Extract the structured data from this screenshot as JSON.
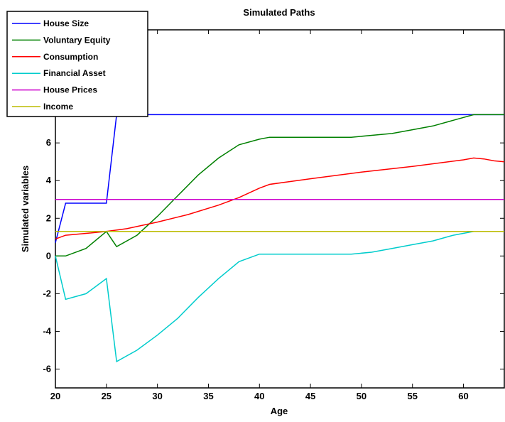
{
  "chart_data": {
    "type": "line",
    "title": "Simulated Paths",
    "xlabel": "Age",
    "ylabel": "Simulated variables",
    "xlim": [
      20,
      64
    ],
    "ylim": [
      -7,
      12
    ],
    "xticks": [
      20,
      25,
      30,
      35,
      40,
      45,
      50,
      55,
      60
    ],
    "yticks": [
      -6,
      -4,
      -2,
      0,
      2,
      4,
      6
    ],
    "grid": false,
    "legend_position": "top-left",
    "series": [
      {
        "name": "House Size",
        "color": "#0000ff",
        "x": [
          20,
          21,
          25,
          26,
          64
        ],
        "y": [
          0.7,
          2.8,
          2.8,
          7.5,
          7.5
        ]
      },
      {
        "name": "Voluntary Equity",
        "color": "#008000",
        "x": [
          20,
          21,
          23,
          25,
          26,
          28,
          30,
          32,
          34,
          36,
          38,
          40,
          41,
          45,
          49,
          51,
          53,
          55,
          57,
          59,
          61,
          64
        ],
        "y": [
          0,
          0,
          0.4,
          1.3,
          0.5,
          1.1,
          2.1,
          3.2,
          4.3,
          5.2,
          5.9,
          6.2,
          6.3,
          6.3,
          6.3,
          6.4,
          6.5,
          6.7,
          6.9,
          7.2,
          7.5,
          7.5
        ]
      },
      {
        "name": "Consumption",
        "color": "#ff0000",
        "x": [
          20,
          21,
          23,
          25,
          27,
          30,
          33,
          36,
          38,
          40,
          41,
          45,
          50,
          55,
          60,
          61,
          62,
          63,
          64
        ],
        "y": [
          0.9,
          1.1,
          1.2,
          1.3,
          1.45,
          1.8,
          2.2,
          2.7,
          3.1,
          3.6,
          3.8,
          4.1,
          4.45,
          4.75,
          5.1,
          5.2,
          5.15,
          5.05,
          5.0
        ]
      },
      {
        "name": "Financial Asset",
        "color": "#00cccc",
        "x": [
          20,
          21,
          23,
          25,
          26,
          28,
          30,
          32,
          34,
          36,
          38,
          40,
          41,
          49,
          51,
          53,
          55,
          57,
          59,
          61,
          64
        ],
        "y": [
          0,
          -2.3,
          -2.0,
          -1.2,
          -5.6,
          -5.0,
          -4.2,
          -3.3,
          -2.2,
          -1.2,
          -0.3,
          0.1,
          0.1,
          0.1,
          0.2,
          0.4,
          0.6,
          0.8,
          1.1,
          1.3,
          1.3
        ]
      },
      {
        "name": "House Prices",
        "color": "#cc00cc",
        "x": [
          20,
          64
        ],
        "y": [
          3.0,
          3.0
        ]
      },
      {
        "name": "Income",
        "color": "#bbbb00",
        "x": [
          20,
          64
        ],
        "y": [
          1.3,
          1.3
        ]
      }
    ]
  },
  "legend_labels": [
    "House Size",
    "Voluntary Equity",
    "Consumption",
    "Financial Asset",
    "House Prices",
    "Income"
  ]
}
